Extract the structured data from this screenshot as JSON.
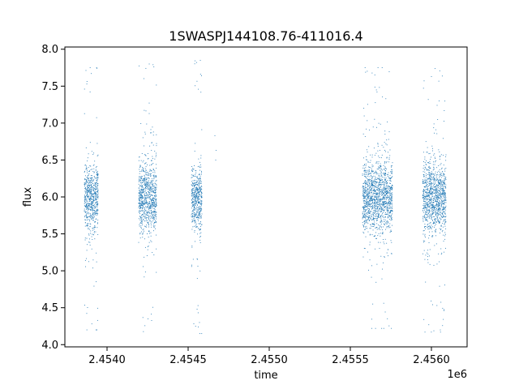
{
  "chart_data": {
    "type": "scatter",
    "title": "1SWASPJ144108.76-411016.4",
    "xlabel": "time",
    "ylabel": "flux",
    "x_offset_label": "1e6",
    "xlim": [
      2453740,
      2456220
    ],
    "ylim": [
      3.97,
      8.03
    ],
    "xticks": [
      2454000,
      2454500,
      2455000,
      2455500,
      2456000
    ],
    "xtick_labels": [
      "2.4540",
      "2.4545",
      "2.4550",
      "2.4555",
      "2.4560"
    ],
    "yticks": [
      4.0,
      4.5,
      5.0,
      5.5,
      6.0,
      6.5,
      7.0,
      7.5,
      8.0
    ],
    "ytick_labels": [
      "4.0",
      "4.5",
      "5.0",
      "5.5",
      "6.0",
      "6.5",
      "7.0",
      "7.5",
      "8.0"
    ],
    "marker_color": "#1f77b4",
    "grid": false,
    "legend": false,
    "clusters": [
      {
        "x_min": 2453860,
        "x_max": 2453945,
        "y_center": 6.0,
        "y_min": 4.2,
        "y_max": 7.75
      },
      {
        "x_min": 2454195,
        "x_max": 2454305,
        "y_center": 6.0,
        "y_min": 4.15,
        "y_max": 7.8
      },
      {
        "x_min": 2454520,
        "x_max": 2454585,
        "y_center": 5.95,
        "y_min": 4.15,
        "y_max": 7.85
      },
      {
        "x_min": 2455575,
        "x_max": 2455760,
        "y_center": 6.0,
        "y_min": 4.22,
        "y_max": 7.75
      },
      {
        "x_min": 2455945,
        "x_max": 2456090,
        "y_center": 6.0,
        "y_min": 4.17,
        "y_max": 7.8
      }
    ],
    "isolated_points": [
      {
        "x": 2454665,
        "y": 6.83
      },
      {
        "x": 2454672,
        "y": 6.63
      },
      {
        "x": 2454670,
        "y": 6.5
      }
    ]
  }
}
